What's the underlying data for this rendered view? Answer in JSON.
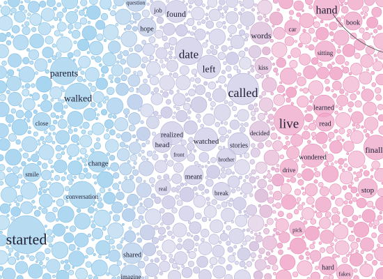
{
  "palette": {
    "blue": "#9fd0ee",
    "lavender": "#cdcbe6",
    "pink": "#efa6c8",
    "stroke_blue": "#7fbde3",
    "stroke_lavender": "#b3b0d6",
    "stroke_pink": "#e58bb4",
    "text": "#1f1f33"
  },
  "words": [
    {
      "text": "started",
      "size": 22
    },
    {
      "text": "parents",
      "size": 14
    },
    {
      "text": "walked",
      "size": 14
    },
    {
      "text": "change",
      "size": 10
    },
    {
      "text": "smile",
      "size": 9
    },
    {
      "text": "close",
      "size": 9
    },
    {
      "text": "shared",
      "size": 10
    },
    {
      "text": "conversation",
      "size": 9
    },
    {
      "text": "date",
      "size": 17
    },
    {
      "text": "left",
      "size": 14
    },
    {
      "text": "called",
      "size": 18
    },
    {
      "text": "found",
      "size": 12
    },
    {
      "text": "words",
      "size": 12
    },
    {
      "text": "hope",
      "size": 10
    },
    {
      "text": "head",
      "size": 11
    },
    {
      "text": "watched",
      "size": 11
    },
    {
      "text": "stories",
      "size": 10
    },
    {
      "text": "realized",
      "size": 10
    },
    {
      "text": "meant",
      "size": 10
    },
    {
      "text": "decided",
      "size": 9
    },
    {
      "text": "break",
      "size": 9
    },
    {
      "text": "kiss",
      "size": 9
    },
    {
      "text": "live",
      "size": 19
    },
    {
      "text": "hand",
      "size": 16
    },
    {
      "text": "learned",
      "size": 10
    },
    {
      "text": "read",
      "size": 10
    },
    {
      "text": "wondered",
      "size": 10
    },
    {
      "text": "finally",
      "size": 12
    },
    {
      "text": "stop",
      "size": 11
    },
    {
      "text": "book",
      "size": 10
    },
    {
      "text": "sitting",
      "size": 9
    },
    {
      "text": "drive",
      "size": 9
    },
    {
      "text": "car",
      "size": 9
    },
    {
      "text": "hard",
      "size": 10
    },
    {
      "text": "imagine",
      "size": 9
    },
    {
      "text": "job",
      "size": 9
    },
    {
      "text": "question",
      "size": 8
    },
    {
      "text": "real",
      "size": 8
    },
    {
      "text": "front",
      "size": 8
    },
    {
      "text": "brother",
      "size": 8
    },
    {
      "text": "pick",
      "size": 8
    },
    {
      "text": "fakes",
      "size": 8
    }
  ]
}
